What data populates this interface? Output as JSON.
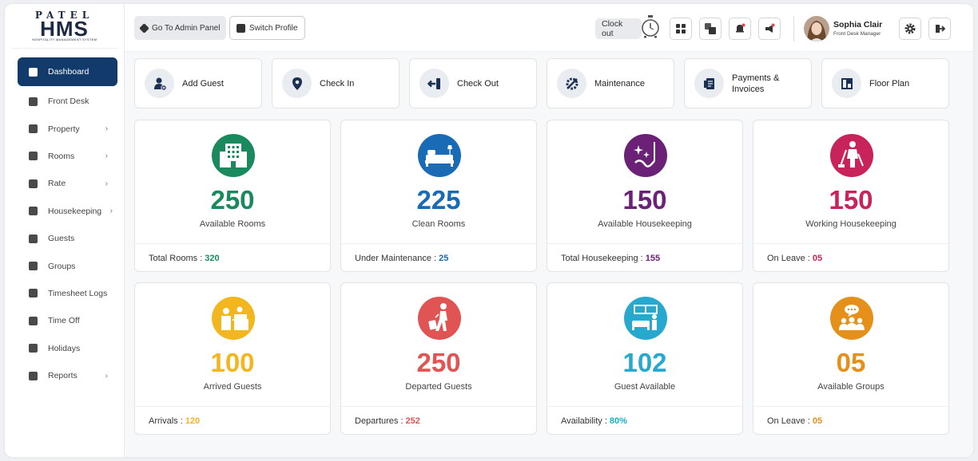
{
  "logo": {
    "top": "PATEL",
    "main": "HMS",
    "sub": "HOSPITALITY MANAGEMENT SYSTEM"
  },
  "sidebar": {
    "items": [
      {
        "label": "Dashboard",
        "icon": "dashboard-icon",
        "arrow": ""
      },
      {
        "label": "Front Desk",
        "icon": "front-desk-icon",
        "arrow": ""
      },
      {
        "label": "Property",
        "icon": "property-icon",
        "arrow": "›"
      },
      {
        "label": "Rooms",
        "icon": "rooms-icon",
        "arrow": "›"
      },
      {
        "label": "Rate",
        "icon": "rate-icon",
        "arrow": "›"
      },
      {
        "label": "Housekeeping",
        "icon": "housekeeping-icon",
        "arrow": "›"
      },
      {
        "label": "Guests",
        "icon": "guests-icon",
        "arrow": ""
      },
      {
        "label": "Groups",
        "icon": "groups-icon",
        "arrow": ""
      },
      {
        "label": "Timesheet Logs",
        "icon": "timesheet-icon",
        "arrow": ""
      },
      {
        "label": "Time Off",
        "icon": "time-off-icon",
        "arrow": ""
      },
      {
        "label": "Holidays",
        "icon": "holidays-icon",
        "arrow": ""
      },
      {
        "label": "Reports",
        "icon": "reports-icon",
        "arrow": "›"
      }
    ]
  },
  "topbar": {
    "admin_label": "Go To Admin Panel",
    "switch_label": "Switch Profile",
    "clock_out_label": "Clock out",
    "user_name": "Sophia Clair",
    "user_role": "Front Desk Manager"
  },
  "quick_actions": [
    {
      "label": "Add Guest",
      "icon": "add-guest-icon"
    },
    {
      "label": "Check In",
      "icon": "location-pin-icon"
    },
    {
      "label": "Check Out",
      "icon": "exit-arrow-icon"
    },
    {
      "label": "Maintenance",
      "icon": "maintenance-icon"
    },
    {
      "label": "Payments & Invoices",
      "icon": "receipt-icon"
    },
    {
      "label": "Floor Plan",
      "icon": "floor-plan-icon"
    }
  ],
  "stat_cards": [
    {
      "value": "250",
      "label": "Available Rooms",
      "foot_label": "Total Rooms :",
      "foot_value": "320",
      "color": "#1a8a5e",
      "icon": "building-icon"
    },
    {
      "value": "225",
      "label": "Clean Rooms",
      "foot_label": "Under Maintenance :",
      "foot_value": "25",
      "color": "#1a6bb5",
      "icon": "bed-icon"
    },
    {
      "value": "150",
      "label": "Available Housekeeping",
      "foot_label": "Total Housekeeping :",
      "foot_value": "155",
      "color": "#6b2175",
      "icon": "sparkle-broom-icon"
    },
    {
      "value": "150",
      "label": "Working Housekeeping",
      "foot_label": "On Leave :",
      "foot_value": "05",
      "color": "#c8235b",
      "icon": "cleaner-icon"
    },
    {
      "value": "100",
      "label": "Arrived Guests",
      "foot_label": "Arrivals :",
      "foot_value": "120",
      "color": "#f2b61f",
      "icon": "reception-icon"
    },
    {
      "value": "250",
      "label": "Departed Guests",
      "foot_label": "Departures :",
      "foot_value": "252",
      "color": "#e15454",
      "icon": "luggage-walker-icon"
    },
    {
      "value": "102",
      "label": "Guest Available",
      "foot_label": "Availability :",
      "foot_value": "80%",
      "color": "#27a9cf",
      "icon": "guest-room-icon"
    },
    {
      "value": "05",
      "label": "Available Groups",
      "foot_label": "On Leave :",
      "foot_value": "05",
      "color": "#e5901b",
      "icon": "group-chat-icon"
    }
  ]
}
